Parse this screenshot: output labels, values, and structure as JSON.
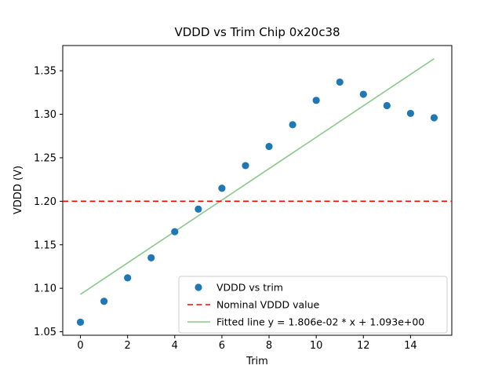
{
  "figure": {
    "background": "#ffffff"
  },
  "chart_data": {
    "type": "scatter",
    "title": "VDDD vs Trim Chip 0x20c38",
    "xlabel": "Trim",
    "ylabel": "VDDD (V)",
    "xlim": [
      -0.75,
      15.75
    ],
    "ylim": [
      1.046,
      1.379
    ],
    "xticks": [
      0,
      2,
      4,
      6,
      8,
      10,
      12,
      14
    ],
    "ytick_values": [
      1.05,
      1.1,
      1.15,
      1.2,
      1.25,
      1.3,
      1.35
    ],
    "ytick_labels": [
      "1.05",
      "1.10",
      "1.15",
      "1.20",
      "1.25",
      "1.30",
      "1.35"
    ],
    "grid": false,
    "legend_position": "lower right",
    "series": [
      {
        "name": "VDDD vs trim",
        "kind": "scatter",
        "marker": "circle",
        "color": "#1f77b4",
        "x": [
          0,
          1,
          2,
          3,
          4,
          5,
          6,
          7,
          8,
          9,
          10,
          11,
          12,
          13,
          14,
          15
        ],
        "y": [
          1.061,
          1.085,
          1.112,
          1.135,
          1.165,
          1.191,
          1.215,
          1.241,
          1.263,
          1.288,
          1.316,
          1.337,
          1.323,
          1.31,
          1.301,
          1.296
        ]
      },
      {
        "name": "Nominal VDDD value",
        "kind": "hline",
        "linestyle": "dashed",
        "color": "#ff0000",
        "value": 1.2
      },
      {
        "name": "Fitted line y = 1.806e-02 * x + 1.093e+00",
        "kind": "line",
        "linestyle": "solid",
        "color": "#8bc88b",
        "slope": 0.01806,
        "intercept": 1.093,
        "x_start": 0,
        "x_end": 15
      }
    ]
  }
}
